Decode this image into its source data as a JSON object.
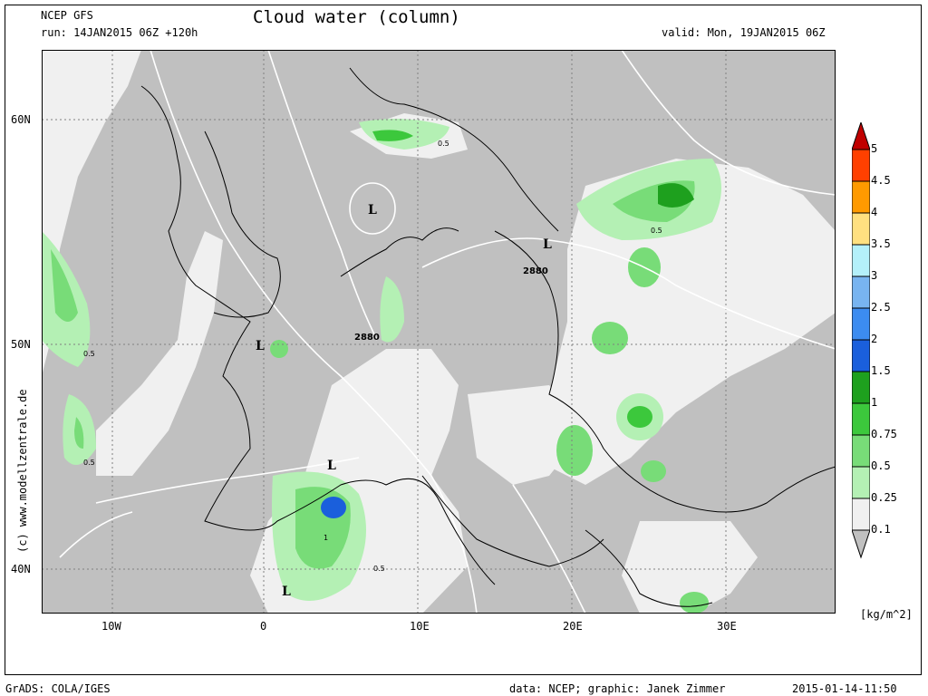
{
  "header": {
    "model": "NCEP GFS",
    "run": "run: 14JAN2015 06Z +120h",
    "title": "Cloud water (column)",
    "valid": "valid: Mon, 19JAN2015 06Z"
  },
  "watermark": "(c) www.modellzentrale.de",
  "axes": {
    "lat_labels": [
      "60N",
      "50N",
      "40N"
    ],
    "lon_labels": [
      "10W",
      "0",
      "10E",
      "20E",
      "30E"
    ]
  },
  "map_labels": {
    "lows": [
      "L",
      "L",
      "L",
      "L",
      "L"
    ],
    "contours": [
      "2880",
      "2880"
    ],
    "values": [
      "0.5",
      "0.5",
      "0.5",
      "0.5",
      "0.5",
      "1"
    ]
  },
  "colorbar": {
    "levels": [
      "5",
      "4.5",
      "4",
      "3.5",
      "3",
      "2.5",
      "2",
      "1.5",
      "1",
      "0.75",
      "0.5",
      "0.25",
      "0.1"
    ],
    "colors": [
      "#c00000",
      "#ff4000",
      "#ff9a00",
      "#ffe080",
      "#b4f0fa",
      "#78b4f0",
      "#3c8cf0",
      "#1a5fdc",
      "#1ea01e",
      "#3cc83c",
      "#78dc78",
      "#b4f0b4",
      "#f0f0f0"
    ],
    "unit": "[kg/m^2]"
  },
  "footer": {
    "left": "GrADS: COLA/IGES",
    "credits": "data: NCEP; graphic: Janek Zimmer",
    "timestamp": "2015-01-14-11:50"
  }
}
